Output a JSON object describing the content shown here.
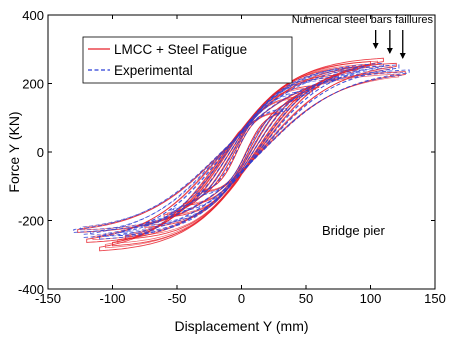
{
  "chart_data": {
    "type": "line",
    "title": "",
    "xlabel": "Displacement Y (mm)",
    "ylabel": "Force Y (KN)",
    "xlim": [
      -150,
      150
    ],
    "ylim": [
      -400,
      400
    ],
    "xticks": [
      -150,
      -100,
      -50,
      0,
      50,
      100,
      150
    ],
    "yticks": [
      -400,
      -200,
      0,
      200,
      400
    ],
    "grid": false,
    "legend_position": "top-left",
    "annotation": "Numerical steel bars faillures",
    "inner_label": "Bridge pier",
    "series": [
      {
        "name": "LMCC + Steel Fatigue",
        "color": "#e8202a",
        "style": "solid",
        "cycles": [
          {
            "disp_amp": 30,
            "force_max": 120,
            "force_min": -120
          },
          {
            "disp_amp": 45,
            "force_max": 165,
            "force_min": -160
          },
          {
            "disp_amp": 60,
            "force_max": 200,
            "force_min": -195
          },
          {
            "disp_amp": 75,
            "force_max": 230,
            "force_min": -225
          },
          {
            "disp_amp": 90,
            "force_max": 255,
            "force_min": -260
          },
          {
            "disp_amp": 100,
            "force_max": 270,
            "force_min": -280
          },
          {
            "disp_amp": 110,
            "force_max": 280,
            "force_min": -295
          },
          {
            "disp_amp": 120,
            "force_max": 265,
            "force_min": -270
          },
          {
            "disp_amp": 127,
            "force_max": 240,
            "force_min": -240
          }
        ]
      },
      {
        "name": "Experimental",
        "color": "#2a3fd6",
        "style": "dashed",
        "cycles": [
          {
            "disp_amp": 35,
            "force_max": 130,
            "force_min": -130
          },
          {
            "disp_amp": 55,
            "force_max": 185,
            "force_min": -180
          },
          {
            "disp_amp": 75,
            "force_max": 225,
            "force_min": -220
          },
          {
            "disp_amp": 95,
            "force_max": 255,
            "force_min": -250
          },
          {
            "disp_amp": 110,
            "force_max": 265,
            "force_min": -260
          },
          {
            "disp_amp": 122,
            "force_max": 260,
            "force_min": -255
          },
          {
            "disp_amp": 130,
            "force_max": 245,
            "force_min": -240
          }
        ]
      }
    ],
    "failure_points_disp": [
      104,
      115,
      125
    ]
  }
}
